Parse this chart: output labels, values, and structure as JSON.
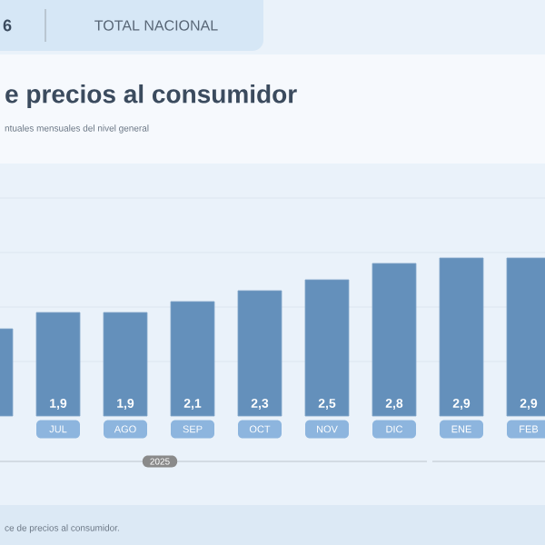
{
  "chart_data": {
    "type": "bar",
    "title": "e precios al consumidor",
    "subtitle": "ntuales mensuales del nivel general",
    "annotations": [
      "6",
      "TOTAL NACIONAL",
      "2025",
      "ce de precios al consumidor."
    ],
    "categories": [
      null,
      "JUL",
      "AGO",
      "SEP",
      "OCT",
      "NOV",
      "DIC",
      "ENE",
      "FEB"
    ],
    "values": [
      1.6,
      1.9,
      1.9,
      2.1,
      2.3,
      2.5,
      2.8,
      2.9,
      2.9
    ],
    "value_labels": [
      null,
      "1,9",
      "1,9",
      "2,1",
      "2,3",
      "2,5",
      "2,8",
      "2,9",
      "2,9"
    ],
    "color": "#6490bb",
    "ylim": [
      0,
      4
    ],
    "yticks": [
      {
        "value": 1,
        "label": null
      },
      {
        "value": 2,
        "label": null
      },
      {
        "value": 3,
        "label": null
      },
      {
        "value": 4,
        "label": null
      }
    ],
    "grid": "y",
    "tick_labels": "x"
  }
}
